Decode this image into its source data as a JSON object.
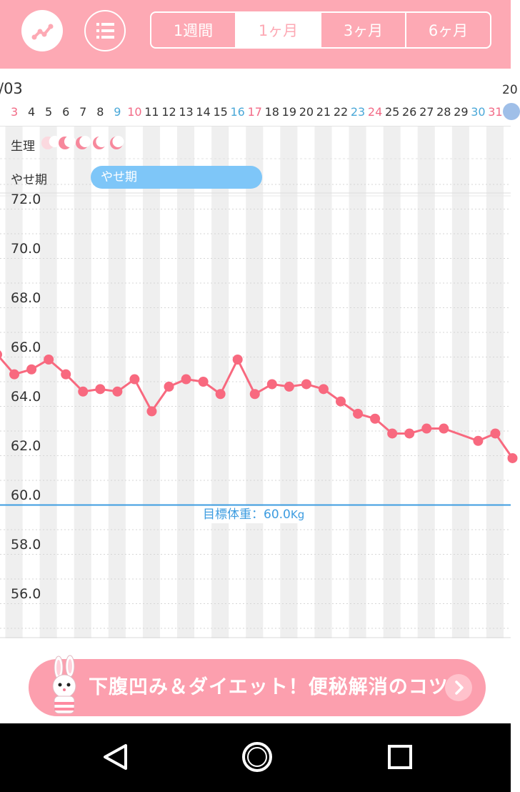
{
  "header": {
    "chart_button_icon": "line-chart-icon",
    "list_button_icon": "list-icon",
    "tabs": [
      {
        "label": "1週間",
        "active": false
      },
      {
        "label": "1ヶ月",
        "active": true
      },
      {
        "label": "3ヶ月",
        "active": false
      },
      {
        "label": "6ヶ月",
        "active": false
      }
    ],
    "accent_color": "#fda9b4"
  },
  "date_header": {
    "month_left": "/03",
    "month_right": "20",
    "days": [
      {
        "label": "3",
        "type": "sun"
      },
      {
        "label": "4",
        "type": "normal"
      },
      {
        "label": "5",
        "type": "normal"
      },
      {
        "label": "6",
        "type": "normal"
      },
      {
        "label": "7",
        "type": "normal"
      },
      {
        "label": "8",
        "type": "normal"
      },
      {
        "label": "9",
        "type": "sat"
      },
      {
        "label": "10",
        "type": "sun"
      },
      {
        "label": "11",
        "type": "normal"
      },
      {
        "label": "12",
        "type": "normal"
      },
      {
        "label": "13",
        "type": "normal"
      },
      {
        "label": "14",
        "type": "normal"
      },
      {
        "label": "15",
        "type": "normal"
      },
      {
        "label": "16",
        "type": "sat"
      },
      {
        "label": "17",
        "type": "sun"
      },
      {
        "label": "18",
        "type": "normal"
      },
      {
        "label": "19",
        "type": "normal"
      },
      {
        "label": "20",
        "type": "normal"
      },
      {
        "label": "21",
        "type": "normal"
      },
      {
        "label": "22",
        "type": "normal"
      },
      {
        "label": "23",
        "type": "sat"
      },
      {
        "label": "24",
        "type": "sun"
      },
      {
        "label": "25",
        "type": "normal"
      },
      {
        "label": "26",
        "type": "normal"
      },
      {
        "label": "27",
        "type": "normal"
      },
      {
        "label": "28",
        "type": "normal"
      },
      {
        "label": "29",
        "type": "normal"
      },
      {
        "label": "30",
        "type": "sat"
      },
      {
        "label": "31",
        "type": "sun"
      }
    ]
  },
  "rows": {
    "period_label": "生理",
    "period_icon": "crescent-moon-icon",
    "period_color": "#f7889c",
    "phase_label": "やせ期",
    "phase_bar_label": "やせ期",
    "phase_color": "#7ec6f8"
  },
  "chart_data": {
    "type": "line",
    "ylim": [
      55,
      73
    ],
    "y_ticks": [
      "72.0",
      "70.0",
      "68.0",
      "66.0",
      "64.0",
      "62.0",
      "60.0",
      "58.0",
      "56.0"
    ],
    "x": [
      "2",
      "3",
      "4",
      "5",
      "6",
      "7",
      "8",
      "9",
      "10",
      "11",
      "12",
      "13",
      "14",
      "15",
      "16",
      "17",
      "18",
      "19",
      "20",
      "21",
      "22",
      "23",
      "24",
      "25",
      "26",
      "27",
      "28",
      "30",
      "31",
      "1"
    ],
    "series": [
      {
        "values": [
          66.1,
          65.3,
          65.5,
          65.9,
          65.3,
          64.6,
          64.7,
          64.6,
          65.1,
          63.8,
          64.8,
          65.1,
          65.0,
          64.5,
          65.9,
          64.5,
          64.9,
          64.8,
          64.9,
          64.7,
          64.2,
          63.7,
          63.5,
          62.9,
          62.9,
          63.1,
          63.1,
          62.6,
          62.9,
          61.9
        ]
      }
    ],
    "line_color": "#f8697f",
    "goal": {
      "value": 60.0,
      "label": "目標体重：60.0",
      "unit": "Kg",
      "color": "#3d9ce0"
    }
  },
  "banner": {
    "text": "下腹凹み＆ダイエット！便秘解消のコツ",
    "arrow_icon": "chevron-right-icon",
    "mascot_icon": "rabbit-mascot-icon"
  },
  "navbar": {
    "back_icon": "back-triangle-icon",
    "home_icon": "home-circle-icon",
    "recents_icon": "recents-square-icon"
  }
}
